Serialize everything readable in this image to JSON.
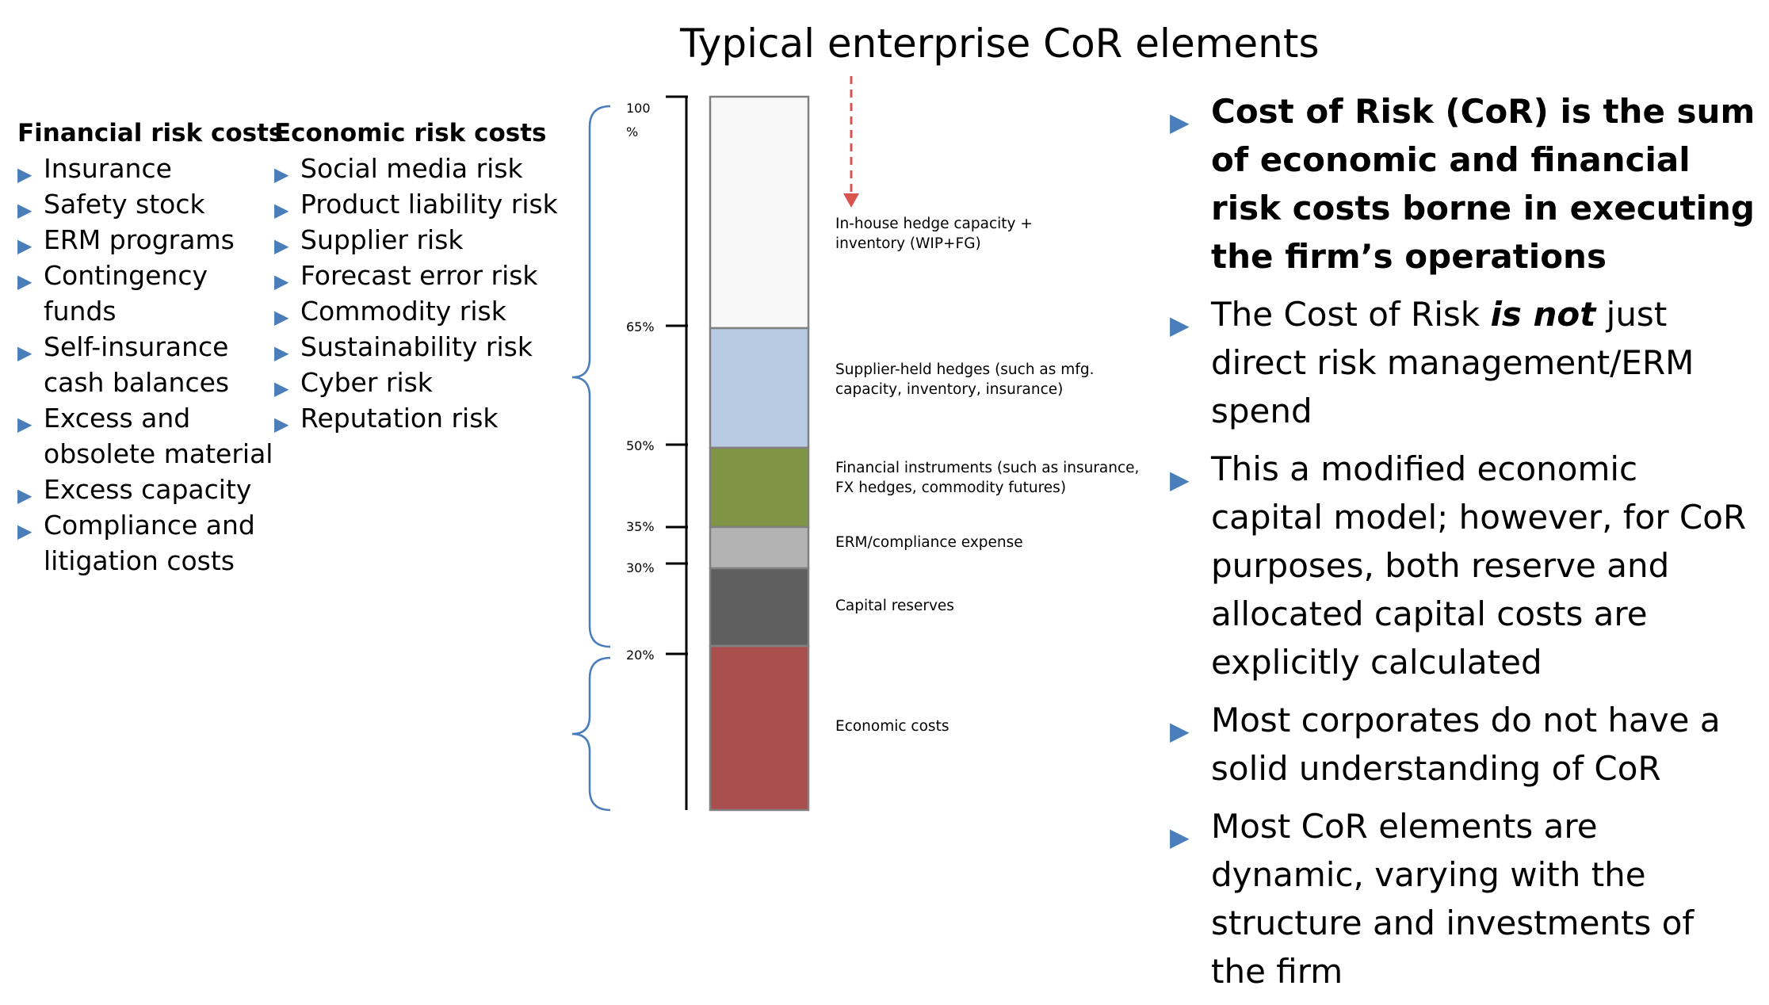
{
  "title": "Typical enterprise CoR elements",
  "financial": {
    "heading": "Financial risk costs",
    "items": [
      "Insurance",
      "Safety stock",
      "ERM programs",
      "Contingency funds",
      "Self-insurance cash balances",
      "Excess and obsolete material",
      "Excess capacity",
      "Compliance and litigation costs"
    ]
  },
  "economic": {
    "heading": "Economic risk costs",
    "items": [
      "Social media risk",
      "Product liability risk",
      "Supplier risk",
      "Forecast error risk",
      "Commodity risk",
      "Sustainability risk",
      "Cyber risk",
      "Reputation risk"
    ]
  },
  "bar": {
    "ticks": [
      {
        "label": "100 %",
        "value": 100
      },
      {
        "label": "65%",
        "value": 65
      },
      {
        "label": "50%",
        "value": 50
      },
      {
        "label": "35%",
        "value": 35
      },
      {
        "label": "30%",
        "value": 30
      },
      {
        "label": "20%",
        "value": 20
      }
    ],
    "segments": [
      {
        "label": "In-house hedge capacity + inventory (WIP+FG)",
        "color": "#f8f8f8"
      },
      {
        "label": "Supplier-held hedges (such as mfg. capacity, inventory, insurance)",
        "color": "#b9cae3"
      },
      {
        "label": "Financial instruments (such as insurance, FX hedges, commodity futures)",
        "color": "#7f9444"
      },
      {
        "label": "ERM/compliance expense",
        "color": "#b3b3b3"
      },
      {
        "label": "Capital reserves",
        "color": "#5f5f5f"
      },
      {
        "label": "Economic costs",
        "color": "#a9504e"
      }
    ]
  },
  "bullets": [
    {
      "text": "Cost of Risk (CoR) is the sum of economic and financial risk costs borne in executing the firm’s operations",
      "bold": true
    },
    {
      "pre": "The Cost of Risk ",
      "em": "is not",
      "post": " just direct risk management/ERM spend"
    },
    {
      "text": "This a modified economic capital model; however, for CoR purposes, both reserve and allocated capital costs are explicitly calculated"
    },
    {
      "text": "Most corporates do not have a solid understanding of CoR"
    },
    {
      "text": "Most CoR elements are dynamic, varying with the structure and investments of the firm"
    }
  ],
  "colors": {
    "bullet": "#4a7ebb",
    "brace": "#4a7ebb",
    "arrow": "#d9534f"
  }
}
